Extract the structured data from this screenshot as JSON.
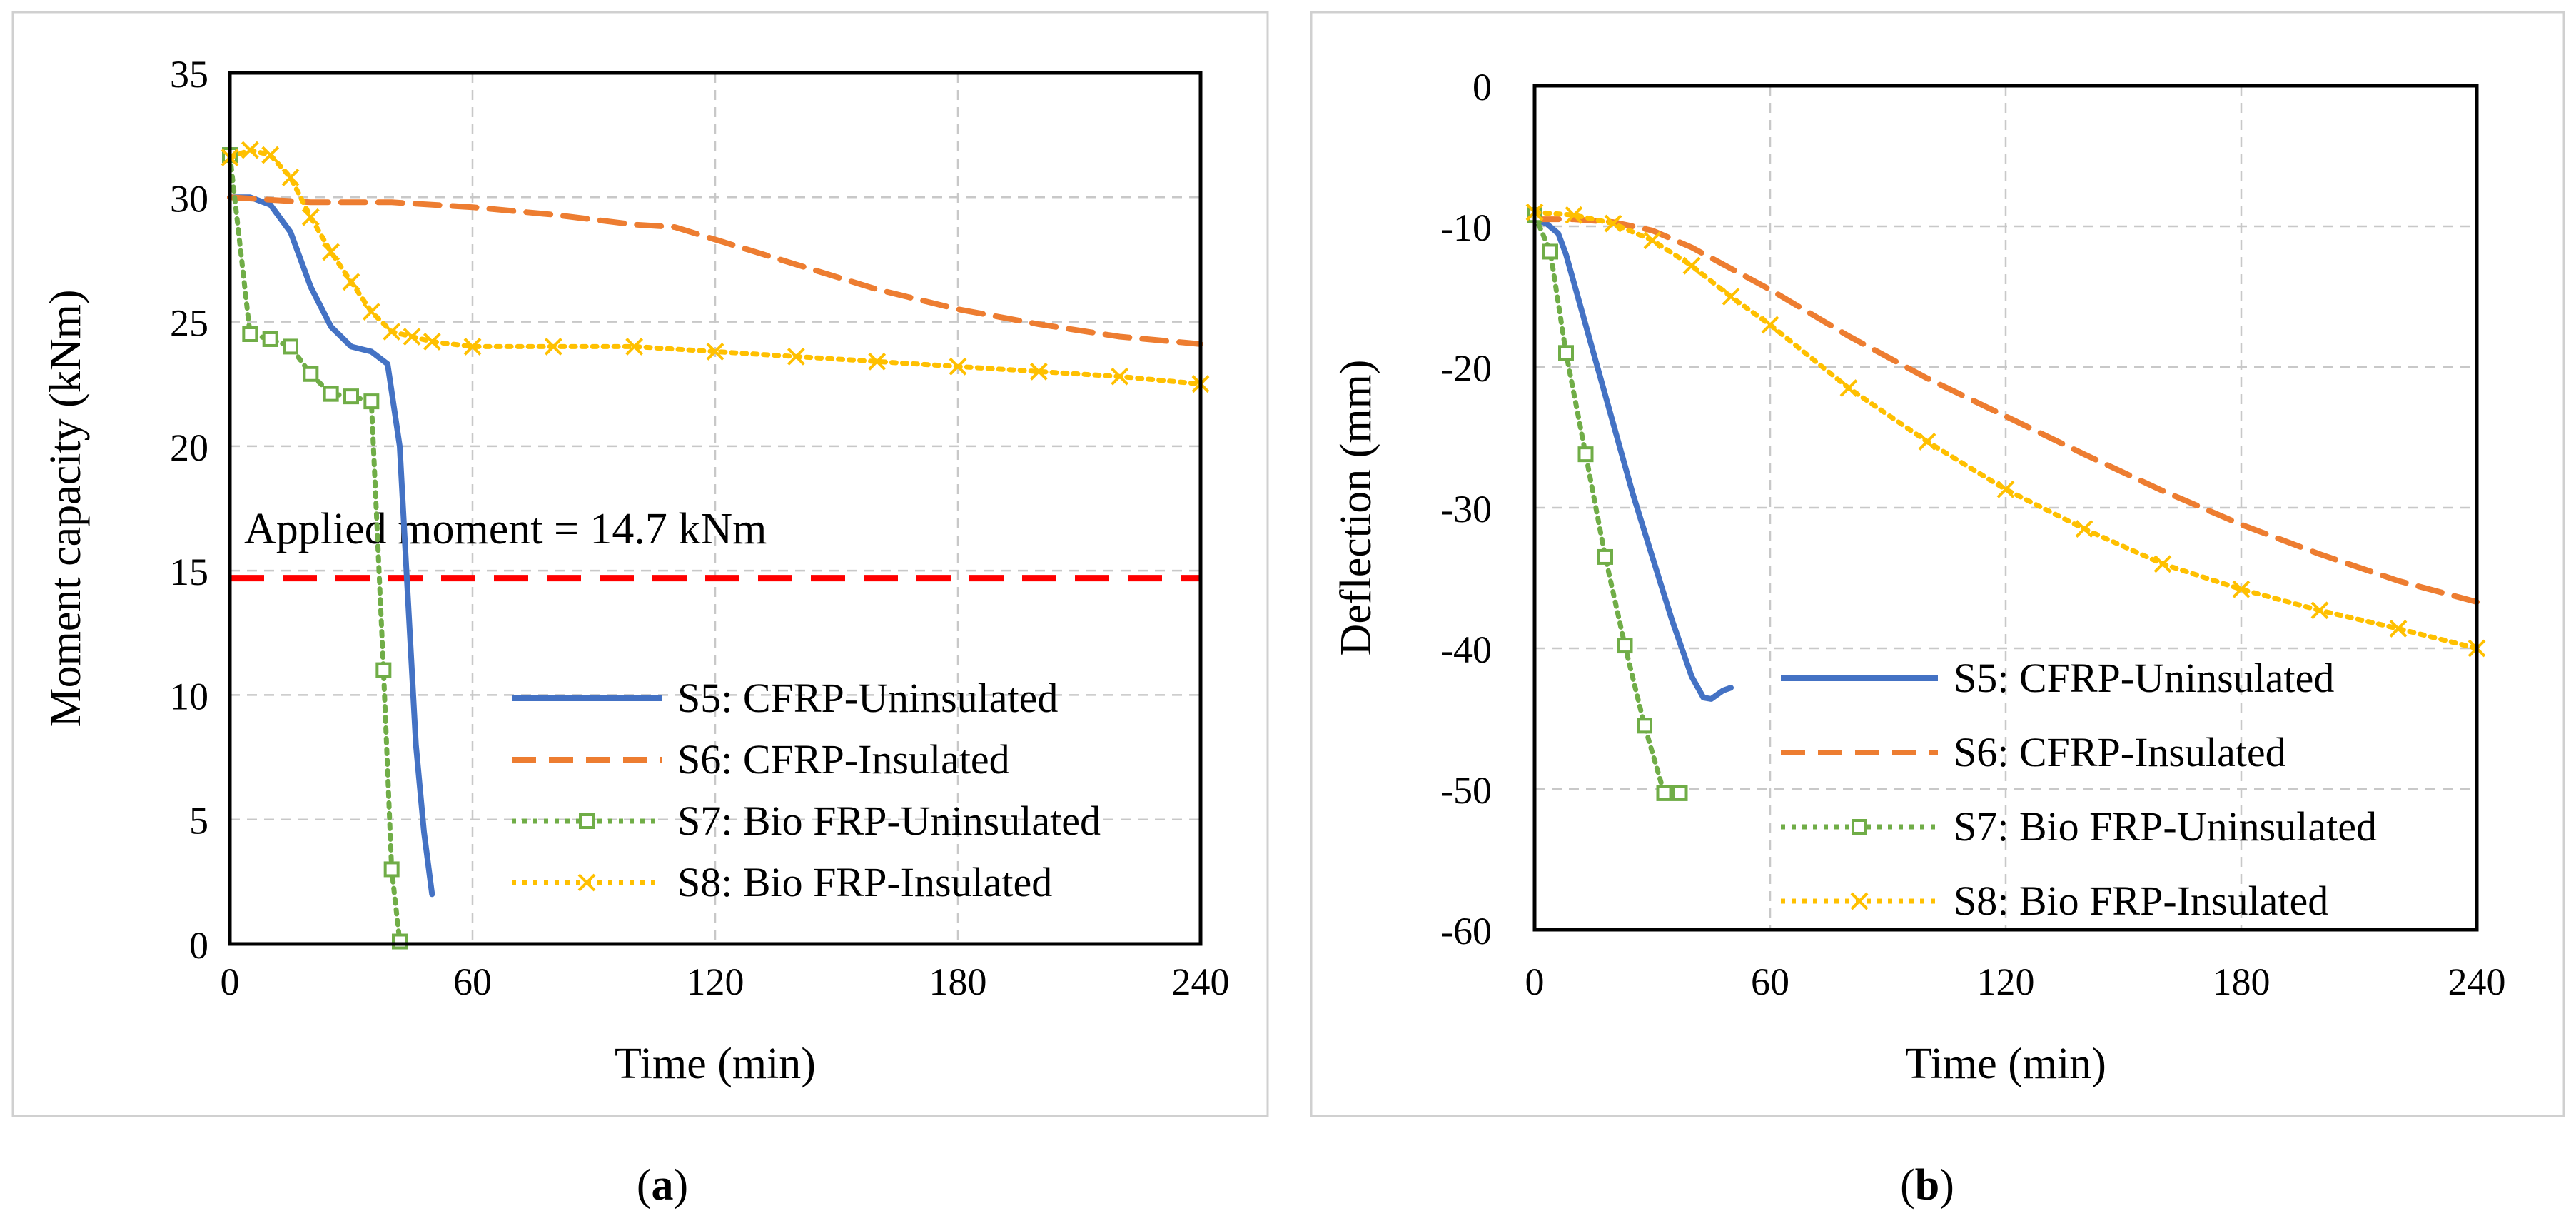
{
  "chart_data": [
    {
      "panel_label_open": "(",
      "panel_label_letter": "a",
      "panel_label_close": ")",
      "type": "line",
      "xlabel": "Time (min)",
      "ylabel": "Moment capacity (kNm)",
      "xlim": [
        0,
        240
      ],
      "ylim": [
        0,
        35
      ],
      "xticks": [
        0,
        60,
        120,
        180,
        240
      ],
      "yticks": [
        0,
        5,
        10,
        15,
        20,
        25,
        30,
        35
      ],
      "grid": "dashed",
      "legend_position": "bottom-right",
      "annotation": {
        "text": "Applied moment = 14.7 kNm",
        "at": [
          3,
          16.1
        ]
      },
      "reference_line": {
        "name": "Applied moment",
        "y": 14.7,
        "color": "#ff0000",
        "style": "dashed"
      },
      "series": [
        {
          "name": "S5: CFRP-Uninsulated",
          "color": "#4472c4",
          "style": "solid",
          "marker": "none",
          "x": [
            0,
            5,
            10,
            15,
            20,
            25,
            30,
            35,
            39,
            42,
            44,
            46,
            48,
            50
          ],
          "y": [
            30,
            30,
            29.7,
            28.6,
            26.4,
            24.8,
            24,
            23.8,
            23.3,
            20,
            14,
            8,
            4.5,
            2
          ]
        },
        {
          "name": "S6: CFRP-Insulated",
          "color": "#ed7d31",
          "style": "dashed",
          "marker": "none",
          "x": [
            0,
            20,
            40,
            60,
            80,
            100,
            110,
            120,
            140,
            160,
            180,
            200,
            220,
            240
          ],
          "y": [
            30,
            29.8,
            29.8,
            29.6,
            29.3,
            28.9,
            28.8,
            28.3,
            27.3,
            26.3,
            25.5,
            24.9,
            24.4,
            24.1
          ]
        },
        {
          "name": "S7: Bio FRP-Uninsulated",
          "color": "#70ad47",
          "style": "dotted",
          "marker": "square",
          "x": [
            0,
            5,
            10,
            15,
            20,
            25,
            30,
            35,
            38,
            40,
            42
          ],
          "y": [
            31.7,
            24.5,
            24.3,
            24,
            22.9,
            22.1,
            22,
            21.8,
            11,
            3,
            0.1
          ]
        },
        {
          "name": "S8: Bio FRP-Insulated",
          "color": "#ffc000",
          "style": "dotted",
          "marker": "x",
          "x": [
            0,
            5,
            10,
            15,
            20,
            25,
            30,
            35,
            40,
            45,
            50,
            60,
            80,
            100,
            120,
            140,
            160,
            180,
            200,
            220,
            240
          ],
          "y": [
            31.6,
            31.9,
            31.7,
            30.8,
            29.2,
            27.8,
            26.6,
            25.4,
            24.6,
            24.4,
            24.2,
            24,
            24,
            24,
            23.8,
            23.6,
            23.4,
            23.2,
            23,
            22.8,
            22.5
          ]
        }
      ]
    },
    {
      "panel_label_open": "(",
      "panel_label_letter": "b",
      "panel_label_close": ")",
      "type": "line",
      "xlabel": "Time (min)",
      "ylabel": "Deflection (mm)",
      "xlim": [
        0,
        240
      ],
      "ylim": [
        -60,
        0
      ],
      "xticks": [
        0,
        60,
        120,
        180,
        240
      ],
      "yticks": [
        0,
        -10,
        -20,
        -30,
        -40,
        -50,
        -60
      ],
      "grid": "dashed",
      "legend_position": "bottom-right",
      "series": [
        {
          "name": "S5: CFRP-Uninsulated",
          "color": "#4472c4",
          "style": "solid",
          "marker": "none",
          "x": [
            0,
            3,
            6,
            8,
            10,
            15,
            20,
            25,
            30,
            35,
            40,
            43,
            45,
            48,
            50
          ],
          "y": [
            -9.5,
            -9.8,
            -10.5,
            -12,
            -14,
            -19,
            -24,
            -29,
            -33.5,
            -38,
            -42,
            -43.5,
            -43.6,
            -43,
            -42.8
          ]
        },
        {
          "name": "S6: CFRP-Insulated",
          "color": "#ed7d31",
          "style": "dashed",
          "marker": "none",
          "x": [
            0,
            10,
            20,
            30,
            40,
            50,
            60,
            80,
            100,
            120,
            140,
            160,
            180,
            200,
            220,
            240
          ],
          "y": [
            -9.5,
            -9.5,
            -9.7,
            -10.3,
            -11.5,
            -13,
            -14.5,
            -17.8,
            -20.8,
            -23.5,
            -26.2,
            -28.8,
            -31.2,
            -33.3,
            -35.2,
            -36.7
          ]
        },
        {
          "name": "S7: Bio FRP-Uninsulated",
          "color": "#70ad47",
          "style": "dotted",
          "marker": "square",
          "x": [
            0,
            4,
            8,
            13,
            18,
            23,
            28,
            33,
            37
          ],
          "y": [
            -9.2,
            -11.8,
            -19,
            -26.2,
            -33.5,
            -39.8,
            -45.5,
            -50.3,
            -50.3
          ]
        },
        {
          "name": "S8: Bio FRP-Insulated",
          "color": "#ffc000",
          "style": "dotted",
          "marker": "x",
          "x": [
            0,
            10,
            20,
            30,
            40,
            50,
            60,
            80,
            100,
            120,
            140,
            160,
            180,
            200,
            220,
            240
          ],
          "y": [
            -9,
            -9.2,
            -9.8,
            -11,
            -12.8,
            -15,
            -17,
            -21.5,
            -25.3,
            -28.7,
            -31.5,
            -34,
            -35.8,
            -37.3,
            -38.6,
            -40
          ]
        }
      ]
    }
  ]
}
